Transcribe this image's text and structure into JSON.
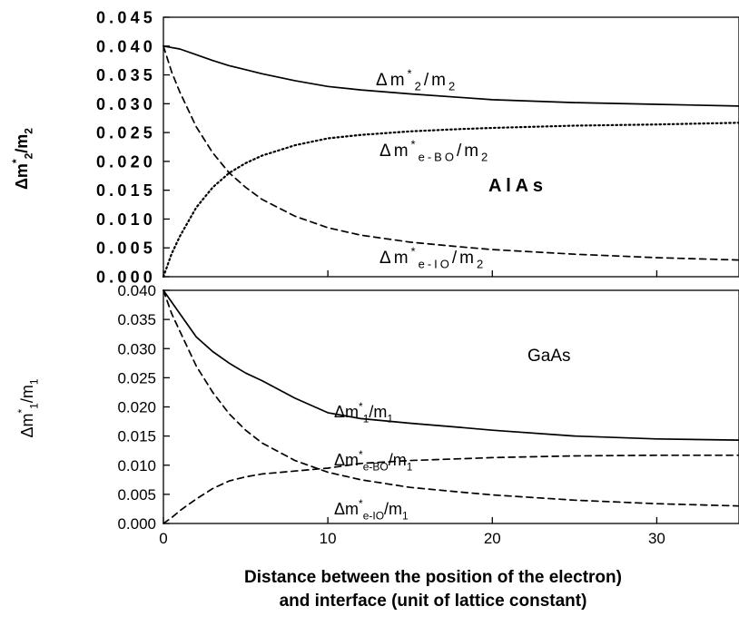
{
  "chart_data": [
    {
      "type": "line",
      "panel": "top",
      "material_label": "A l A s",
      "ylabel": "Δm*2/m2",
      "xlim": [
        0,
        35
      ],
      "ylim": [
        0.0,
        0.045
      ],
      "yticks": [
        "0.000",
        "0.005",
        "0.010",
        "0.015",
        "0.020",
        "0.025",
        "0.030",
        "0.035",
        "0.040",
        "0.045"
      ],
      "grid": false,
      "series": [
        {
          "name": "Δm*2/m2",
          "style": "solid",
          "x": [
            0,
            1,
            2,
            3,
            4,
            5,
            6,
            8,
            10,
            12,
            15,
            18,
            20,
            25,
            30,
            35
          ],
          "y": [
            0.04,
            0.0395,
            0.0385,
            0.0375,
            0.0366,
            0.0359,
            0.0352,
            0.034,
            0.033,
            0.0324,
            0.0317,
            0.0311,
            0.0307,
            0.0302,
            0.0299,
            0.0296
          ]
        },
        {
          "name": "Δm*e-BO/m2",
          "style": "dotted",
          "x": [
            0,
            0.5,
            1,
            2,
            3,
            4,
            5,
            6,
            8,
            10,
            12,
            15,
            18,
            20,
            25,
            30,
            35
          ],
          "y": [
            0.0,
            0.004,
            0.007,
            0.012,
            0.0155,
            0.018,
            0.0197,
            0.021,
            0.0228,
            0.024,
            0.0246,
            0.0252,
            0.0256,
            0.0258,
            0.0262,
            0.0264,
            0.0267
          ]
        },
        {
          "name": "Δm*e-IO/m2",
          "style": "dashed",
          "x": [
            0,
            0.5,
            1,
            2,
            3,
            4,
            5,
            6,
            8,
            10,
            12,
            15,
            18,
            20,
            25,
            30,
            35
          ],
          "y": [
            0.04,
            0.0355,
            0.032,
            0.026,
            0.0215,
            0.018,
            0.0155,
            0.0134,
            0.0105,
            0.0085,
            0.0072,
            0.006,
            0.0052,
            0.0047,
            0.0039,
            0.0033,
            0.0029
          ]
        }
      ]
    },
    {
      "type": "line",
      "panel": "bottom",
      "material_label": "GaAs",
      "ylabel": "Δm*1/m1",
      "xlabel": "Distance between the position of the electron)\nand interface (unit of lattice constant)",
      "xlim": [
        0,
        35
      ],
      "ylim": [
        0.0,
        0.04
      ],
      "xticks": [
        "0",
        "10",
        "20",
        "30"
      ],
      "yticks": [
        "0.000",
        "0.005",
        "0.010",
        "0.015",
        "0.020",
        "0.025",
        "0.030",
        "0.035",
        "0.040"
      ],
      "grid": false,
      "series": [
        {
          "name": "Δm*1/m1",
          "style": "solid",
          "x": [
            0,
            1,
            2,
            3,
            4,
            5,
            6,
            8,
            10,
            12,
            15,
            18,
            20,
            25,
            30,
            35
          ],
          "y": [
            0.04,
            0.036,
            0.032,
            0.0295,
            0.0275,
            0.0258,
            0.0245,
            0.0215,
            0.019,
            0.018,
            0.0172,
            0.0165,
            0.016,
            0.015,
            0.0145,
            0.0143
          ]
        },
        {
          "name": "Δm*e-BO/m1",
          "style": "dashed",
          "x": [
            0,
            0.5,
            1,
            2,
            3,
            4,
            5,
            6,
            8,
            10,
            12,
            15,
            18,
            20,
            25,
            30,
            35
          ],
          "y": [
            0.0,
            0.001,
            0.0022,
            0.0042,
            0.006,
            0.0073,
            0.008,
            0.0085,
            0.009,
            0.0095,
            0.0103,
            0.0108,
            0.0111,
            0.0113,
            0.0116,
            0.0117,
            0.0117
          ]
        },
        {
          "name": "Δm*e-IO/m1",
          "style": "dashed",
          "x": [
            0,
            0.5,
            1,
            2,
            3,
            4,
            5,
            6,
            8,
            10,
            12,
            15,
            18,
            20,
            25,
            30,
            35
          ],
          "y": [
            0.04,
            0.036,
            0.033,
            0.027,
            0.0225,
            0.0188,
            0.016,
            0.0138,
            0.0108,
            0.0088,
            0.0075,
            0.0062,
            0.0054,
            0.0049,
            0.004,
            0.0034,
            0.003
          ]
        }
      ]
    }
  ]
}
